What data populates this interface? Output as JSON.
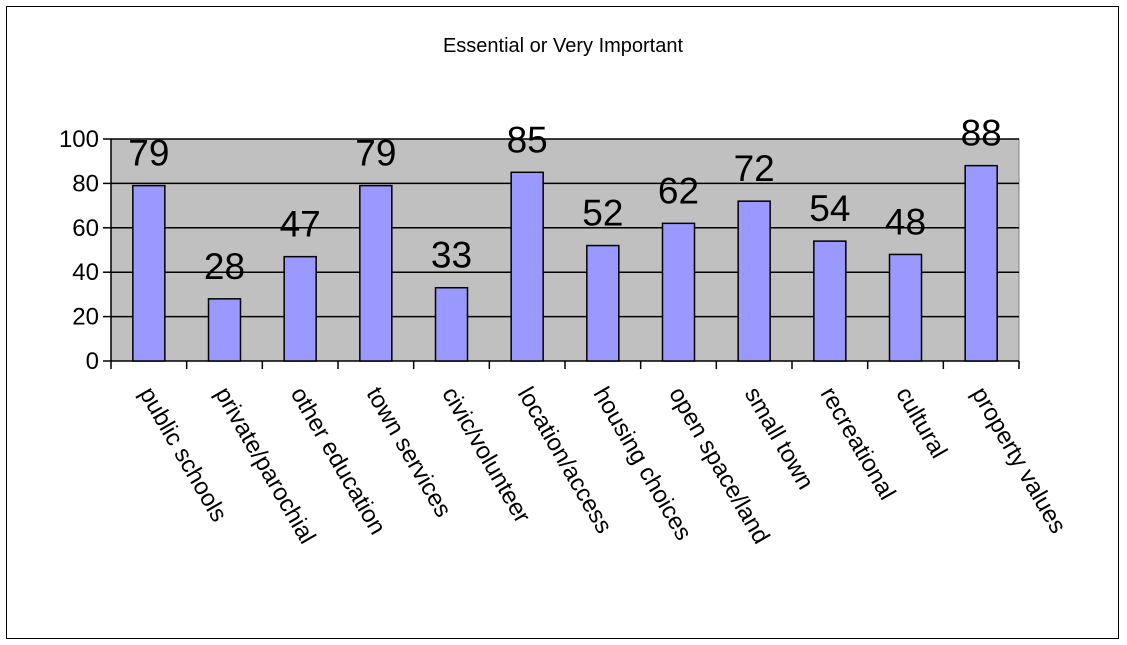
{
  "chart_data": {
    "type": "bar",
    "title": "Essential or Very Important",
    "categories": [
      "public schools",
      "private/parochial",
      "other education",
      "town services",
      "civic/volunteer",
      "location/access",
      "housing choices",
      "open space/land",
      "small town",
      "recreational",
      "cultural",
      "property values"
    ],
    "values": [
      79,
      28,
      47,
      79,
      33,
      85,
      52,
      62,
      72,
      54,
      48,
      88
    ],
    "data_labels": [
      "79",
      "28",
      "47",
      "79",
      "33",
      "85",
      "52",
      "62",
      "72",
      "54",
      "48",
      "88"
    ],
    "ylim": [
      0,
      100
    ],
    "yticks": [
      0,
      20,
      40,
      60,
      80,
      100
    ],
    "ytick_labels": [
      "0",
      "20",
      "40",
      "60",
      "80",
      "100"
    ],
    "grid": true,
    "legend": "none",
    "colors": {
      "bar_fill": "#9999ff",
      "bar_stroke": "#000000",
      "plot_background": "#c0c0c0",
      "gridline": "#000000"
    }
  }
}
